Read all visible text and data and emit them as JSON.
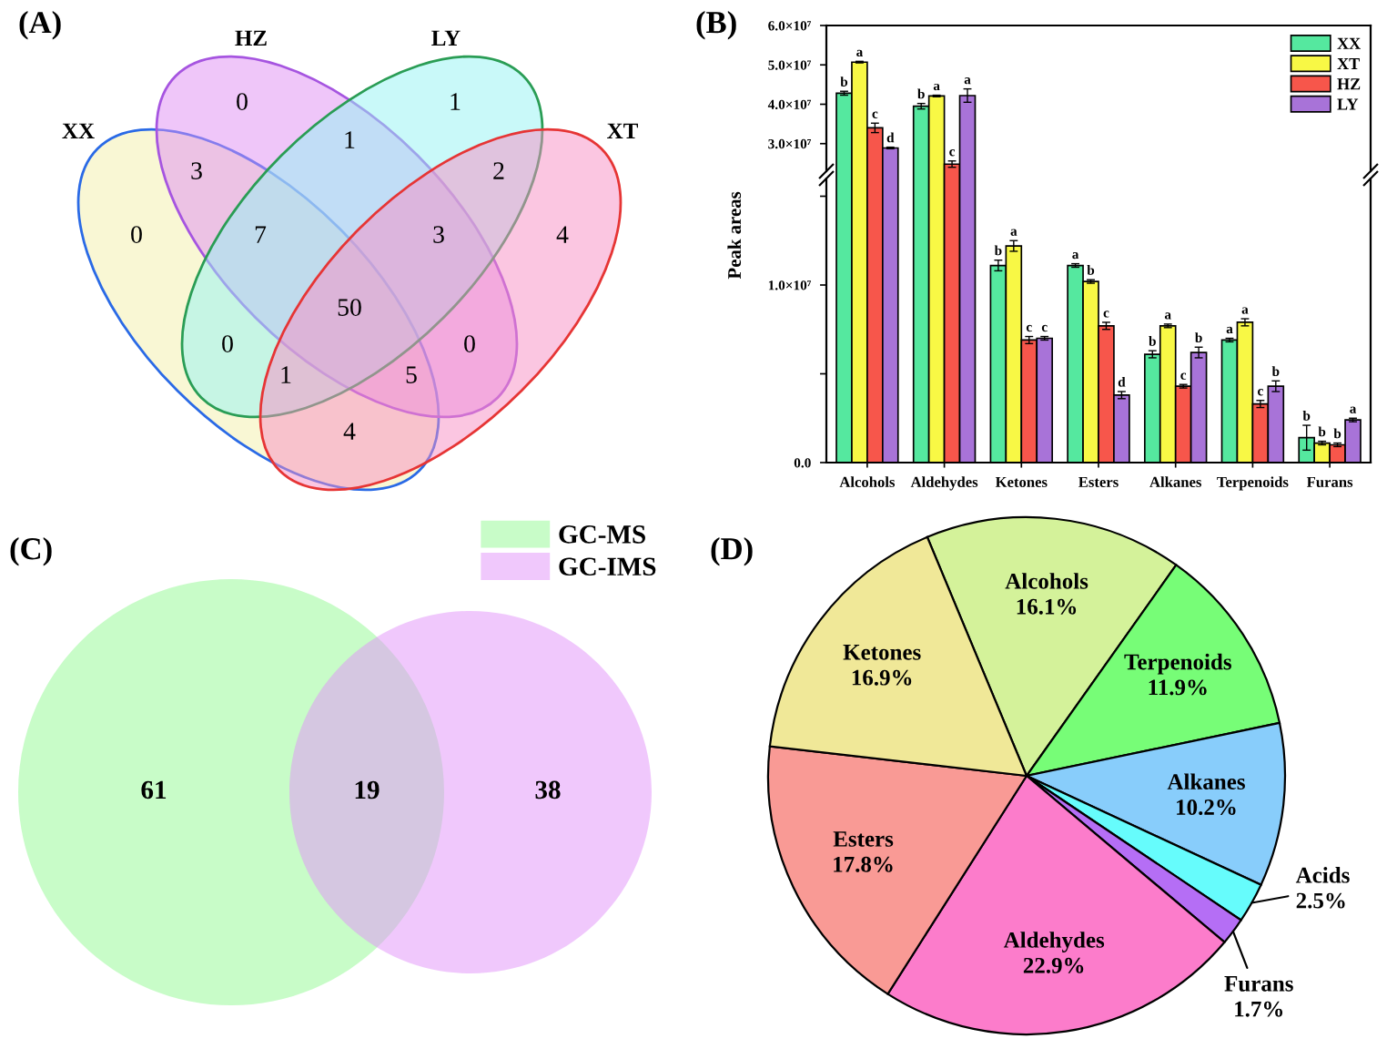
{
  "chart_data": [
    {
      "type": "other",
      "title": "(A)",
      "annotations": [
        "XX",
        "HZ",
        "LY",
        "XT",
        "0",
        "0",
        "1",
        "4",
        "3",
        "0",
        "4",
        "1",
        "0",
        "2",
        "7",
        "5",
        "1",
        "3",
        "50"
      ]
    },
    {
      "type": "bar",
      "title": "(B)",
      "categories": [
        null,
        null,
        null,
        null,
        null,
        null,
        null
      ],
      "series": [
        {
          "name": "XX",
          "color": "#55e89f",
          "values": [
            42800000,
            39500000,
            null,
            null,
            null,
            null,
            null
          ],
          "errors": [
            500000,
            700000,
            null,
            null,
            null,
            null,
            null
          ],
          "value_labels": [
            "b",
            "b",
            null,
            null,
            null,
            null,
            null
          ]
        },
        {
          "name": "XT",
          "color": "#f8f845",
          "values": [
            50700000,
            42100000,
            null,
            null,
            null,
            null,
            null
          ],
          "errors": [
            200000,
            200000,
            null,
            null,
            null,
            null,
            null
          ],
          "value_labels": [
            "a",
            "a",
            null,
            null,
            null,
            null,
            null
          ]
        },
        {
          "name": "HZ",
          "color": "#f7564b",
          "values": [
            34000000,
            24800000,
            null,
            null,
            null,
            null,
            null
          ],
          "errors": [
            1200000,
            800000,
            null,
            null,
            null,
            null,
            null
          ],
          "value_labels": [
            "c",
            "c",
            null,
            null,
            null,
            null,
            null
          ]
        },
        {
          "name": "LY",
          "color": "#a873d8",
          "values": [
            28900000,
            42200000,
            null,
            null,
            null,
            null,
            null
          ],
          "errors": [
            200000,
            1700000,
            null,
            null,
            null,
            null,
            null
          ],
          "value_labels": [
            "d",
            "a",
            null,
            null,
            null,
            null,
            null
          ]
        }
      ],
      "ylim": [
        23000000,
        60000000
      ],
      "yticks": [
        {
          "value": 30000000,
          "label": "3.0×10⁷"
        },
        {
          "value": 40000000,
          "label": "4.0×10⁷"
        },
        {
          "value": 50000000,
          "label": "5.0×10⁷"
        },
        {
          "value": 60000000,
          "label": "6.0×10⁷"
        }
      ],
      "tick_labels": "y",
      "legend": "top right"
    },
    {
      "type": "bar",
      "ylabel": "Peak areas",
      "categories": [
        "Alcohols",
        "Aldehydes",
        "Ketones",
        "Esters",
        "Alkanes",
        "Terpenoids",
        "Furans"
      ],
      "series": [
        {
          "color": "#55e89f",
          "values": [
            null,
            null,
            11100000,
            11100000,
            6100000,
            6900000,
            1400000
          ],
          "errors": [
            null,
            null,
            300000,
            100000,
            200000,
            100000,
            700000
          ],
          "value_labels": [
            null,
            null,
            "b",
            "a",
            "b",
            "a",
            "b"
          ]
        },
        {
          "color": "#f8f845",
          "values": [
            null,
            null,
            12200000,
            10200000,
            7700000,
            7900000,
            1100000
          ],
          "errors": [
            null,
            null,
            300000,
            100000,
            100000,
            200000,
            100000
          ],
          "value_labels": [
            null,
            null,
            "a",
            "b",
            "a",
            "a",
            "b"
          ]
        },
        {
          "color": "#f7564b",
          "values": [
            null,
            null,
            6900000,
            7700000,
            4300000,
            3300000,
            1000000
          ],
          "errors": [
            null,
            null,
            200000,
            200000,
            100000,
            200000,
            100000
          ],
          "value_labels": [
            null,
            null,
            "c",
            "c",
            "c",
            "c",
            "b"
          ]
        },
        {
          "color": "#a873d8",
          "values": [
            null,
            null,
            7000000,
            3800000,
            6200000,
            4300000,
            2400000
          ],
          "errors": [
            null,
            null,
            100000,
            200000,
            300000,
            300000,
            100000
          ],
          "value_labels": [
            null,
            null,
            "c",
            "d",
            "b",
            "b",
            "a"
          ]
        }
      ],
      "ylim": [
        0,
        16000000
      ],
      "yticks": [
        {
          "value": 0,
          "label": "0.0"
        },
        {
          "value": 5000000,
          "label": null
        },
        {
          "value": 10000000,
          "label": "1.0×10⁷"
        },
        {
          "value": 15000000,
          "label": null
        }
      ]
    },
    {
      "type": "other",
      "title": "(C)",
      "series": [
        {
          "name": "GC-MS",
          "color": "#c8fcc8"
        },
        {
          "name": "GC-IMS",
          "color": "#f0c8fc"
        }
      ],
      "annotations": [
        "61",
        "19",
        "38"
      ],
      "legend": "top right"
    },
    {
      "type": "pie",
      "title": "(D)",
      "categories": [
        "Alcohols",
        "Terpenoids",
        "Alkanes",
        "Acids",
        "Furans",
        "Aldehydes",
        "Esters",
        "Ketones"
      ],
      "values": [
        16.1,
        11.9,
        10.2,
        2.5,
        1.7,
        22.9,
        17.8,
        16.9
      ],
      "colors": [
        "#d4f29a",
        "#77fd77",
        "#88cdfb",
        "#66fcfc",
        "#b56ef5",
        "#fc7ccb",
        "#f99a95",
        "#f0e898"
      ],
      "value_labels": [
        "16.1%",
        "11.9%",
        "10.2%",
        "2.5%",
        "1.7%",
        "22.9%",
        "17.8%",
        "16.9%"
      ]
    }
  ]
}
